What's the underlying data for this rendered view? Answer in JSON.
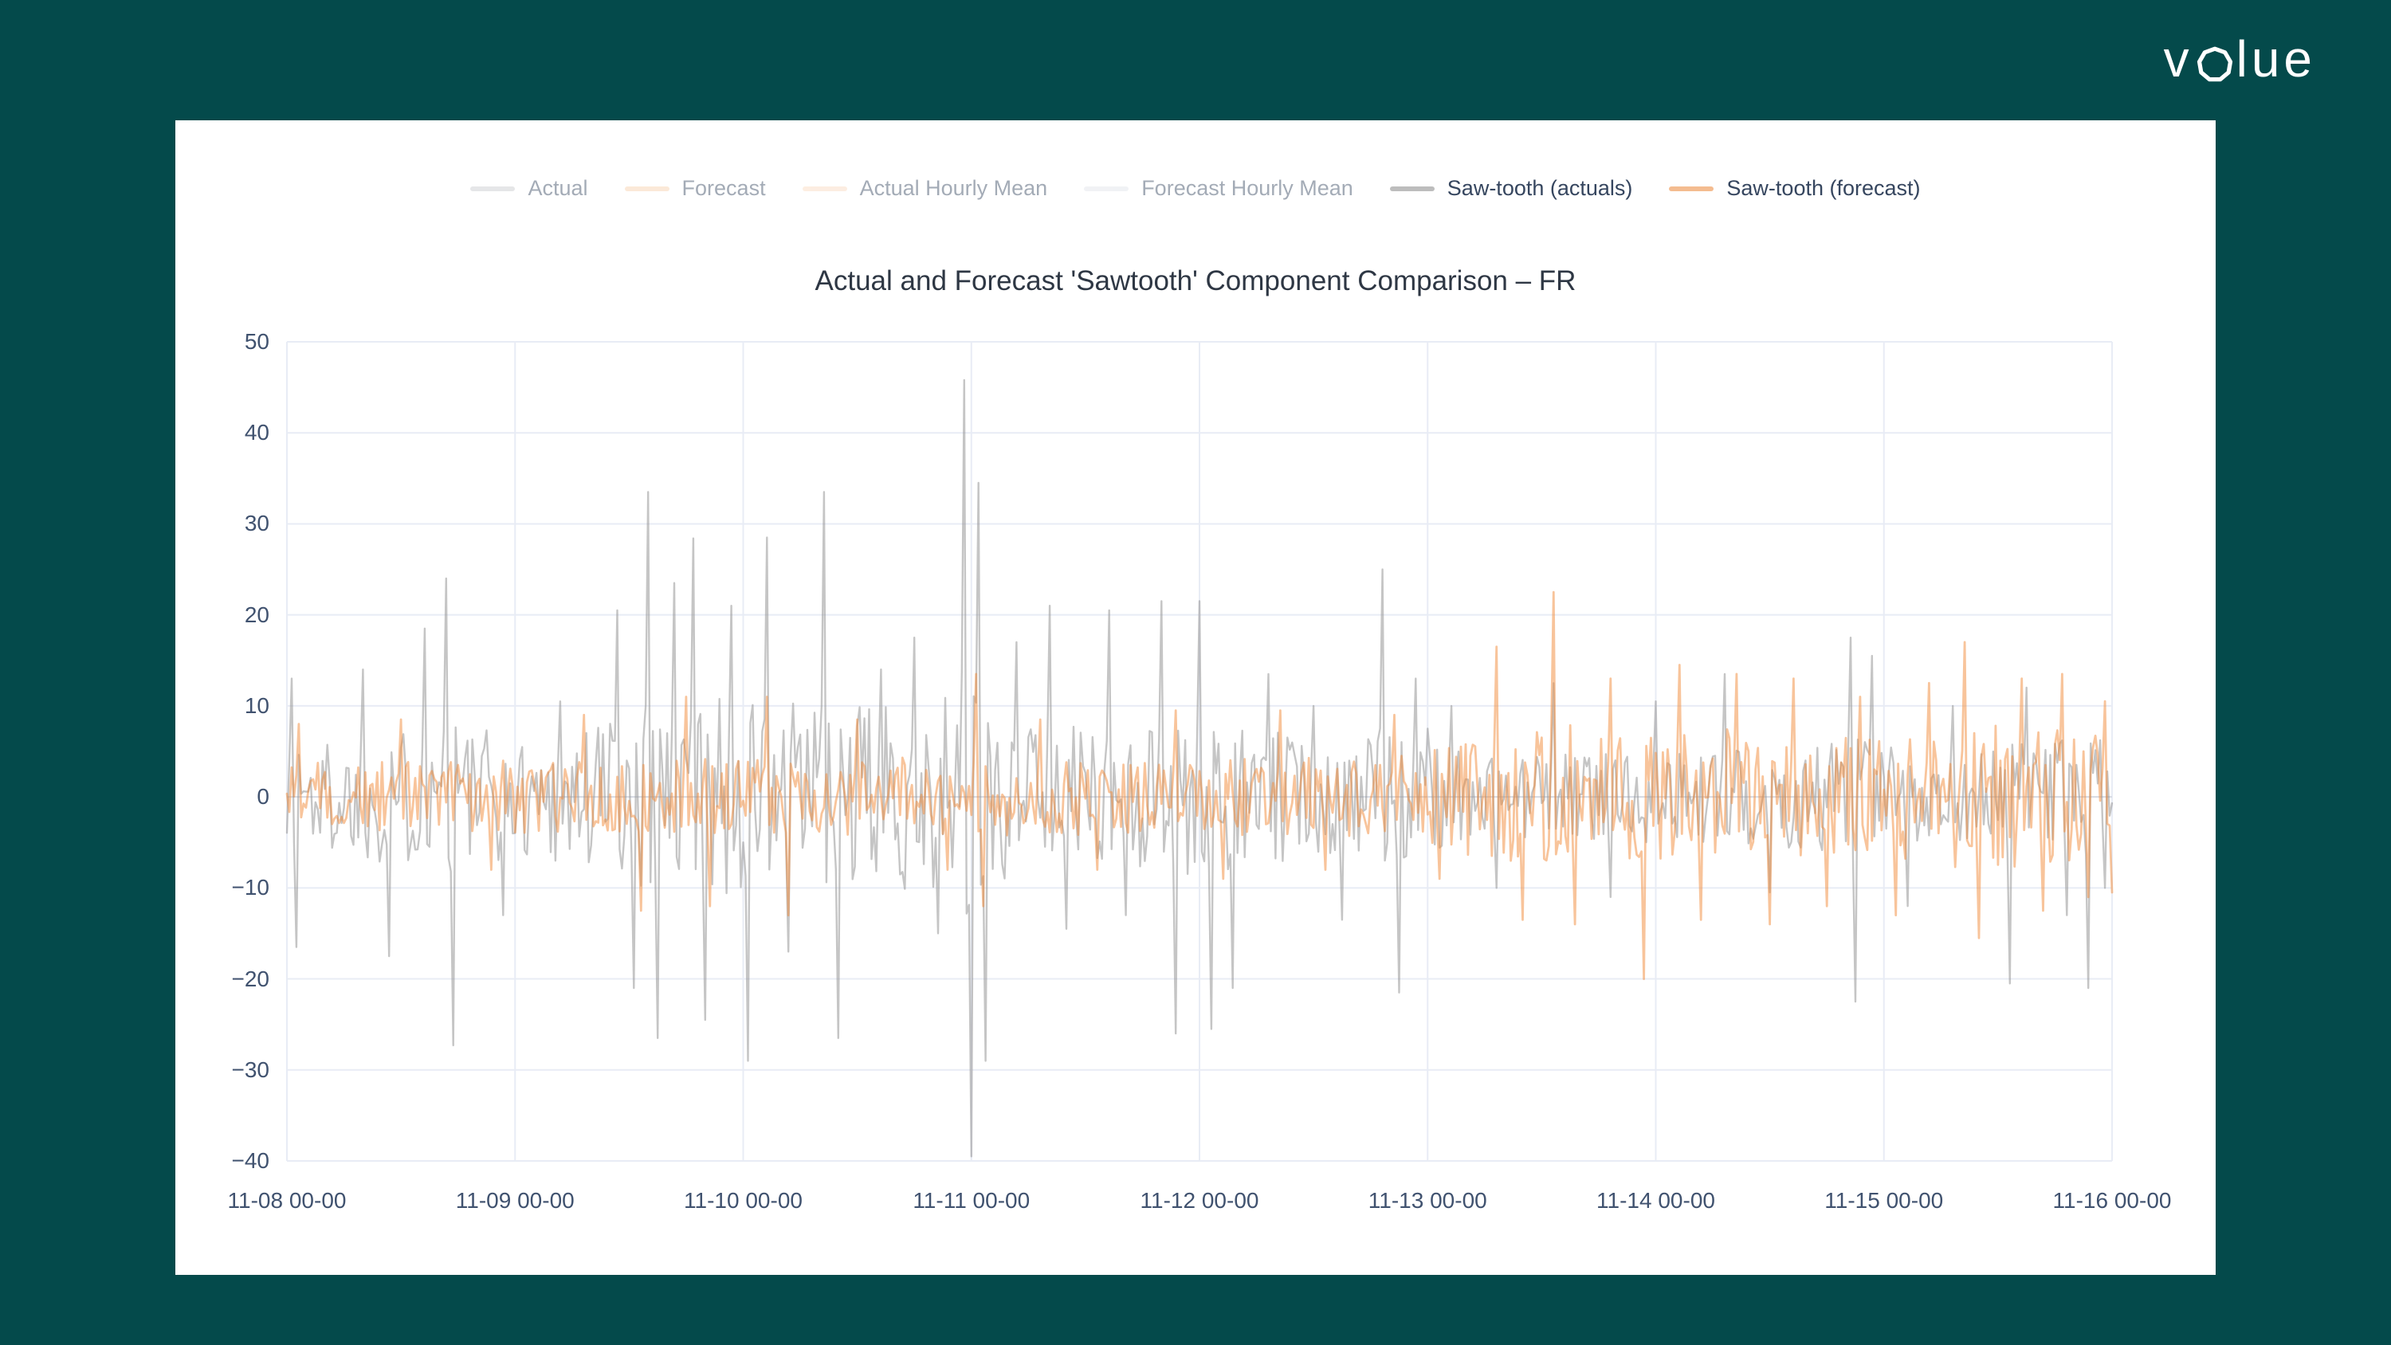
{
  "logo": {
    "first": "v",
    "rest": "lue"
  },
  "chart_data": {
    "type": "line",
    "title": "Actual and Forecast 'Sawtooth' Component Comparison – FR",
    "xlabel": "",
    "ylabel": "",
    "ylim": [
      -40,
      50
    ],
    "xlim_days": [
      0,
      8
    ],
    "grid": true,
    "legend_position": "top-center",
    "x_tick_labels": [
      "11-08 00-00",
      "11-09 00-00",
      "11-10 00-00",
      "11-11 00-00",
      "11-12 00-00",
      "11-13 00-00",
      "11-14 00-00",
      "11-15 00-00",
      "11-16 00-00"
    ],
    "y_tick_values": [
      50,
      40,
      30,
      20,
      10,
      0,
      -10,
      -20,
      -30,
      -40
    ],
    "y_tick_labels": [
      "50",
      "40",
      "30",
      "20",
      "10",
      "0",
      "−10",
      "−20",
      "−30",
      "−40"
    ],
    "colors": {
      "background": "#044a4b",
      "card": "#ffffff",
      "gridline": "#e8ecf5",
      "zeroline": "#d6dae3",
      "tick_text": "#40526f",
      "title_text": "#2e3744",
      "legend_text": "#36465f",
      "logo_text": "#ffffff"
    },
    "legend": [
      {
        "label": "Actual",
        "color": "#c6c8cc",
        "dim": true
      },
      {
        "label": "Forecast",
        "color": "#f7cfab",
        "dim": true
      },
      {
        "label": "Actual Hourly Mean",
        "color": "#fad9bd",
        "dim": true
      },
      {
        "label": "Forecast Hourly Mean",
        "color": "#dfe3e9",
        "dim": true
      },
      {
        "label": "Saw-tooth (actuals)",
        "color": "#bdbdbd",
        "dim": false
      },
      {
        "label": "Saw-tooth (forecast)",
        "color": "#f4bc90",
        "dim": false
      }
    ],
    "hidden_series": [
      "Actual",
      "Forecast",
      "Actual Hourly Mean",
      "Forecast Hourly Mean"
    ],
    "points_per_day": 96,
    "series": [
      {
        "name": "Saw-tooth (actuals)",
        "color": "rgba(150,150,150,0.55)",
        "width": 2.4,
        "seed": 1337,
        "envelope": [
          [
            0,
            5
          ],
          [
            0.5,
            6
          ],
          [
            0.8,
            7
          ],
          [
            1.0,
            5
          ],
          [
            1.4,
            8
          ],
          [
            2.0,
            9
          ],
          [
            2.5,
            8
          ],
          [
            3.0,
            9
          ],
          [
            3.5,
            6
          ],
          [
            4.0,
            7
          ],
          [
            4.6,
            5
          ],
          [
            5.0,
            6
          ],
          [
            5.2,
            4
          ],
          [
            6.0,
            4
          ],
          [
            6.6,
            4.5
          ],
          [
            6.9,
            6
          ],
          [
            7.2,
            3.5
          ],
          [
            7.7,
            5
          ],
          [
            8.0,
            5
          ]
        ],
        "spikes": [
          [
            0.02,
            13
          ],
          [
            0.04,
            -16.5
          ],
          [
            0.33,
            14
          ],
          [
            0.45,
            -17.5
          ],
          [
            0.6,
            18.5
          ],
          [
            0.7,
            24
          ],
          [
            0.73,
            -27.3
          ],
          [
            0.95,
            -13
          ],
          [
            1.2,
            10.5
          ],
          [
            1.45,
            20.5
          ],
          [
            1.52,
            -21
          ],
          [
            1.58,
            33.5
          ],
          [
            1.63,
            -26.5
          ],
          [
            1.7,
            23.5
          ],
          [
            1.78,
            28.4
          ],
          [
            1.83,
            -24.5
          ],
          [
            1.95,
            21
          ],
          [
            2.02,
            -29
          ],
          [
            2.1,
            28.5
          ],
          [
            2.2,
            -17
          ],
          [
            2.35,
            33.5
          ],
          [
            2.42,
            -26.5
          ],
          [
            2.6,
            14
          ],
          [
            2.75,
            17.5
          ],
          [
            2.85,
            -15
          ],
          [
            2.97,
            45.8
          ],
          [
            3.0,
            -39.5
          ],
          [
            3.03,
            34.5
          ],
          [
            3.06,
            -29
          ],
          [
            3.2,
            17
          ],
          [
            3.34,
            21
          ],
          [
            3.42,
            -14.5
          ],
          [
            3.6,
            20.5
          ],
          [
            3.68,
            -13
          ],
          [
            3.83,
            21.5
          ],
          [
            3.9,
            -26
          ],
          [
            4.0,
            21.5
          ],
          [
            4.05,
            -25.5
          ],
          [
            4.15,
            -21
          ],
          [
            4.3,
            13.5
          ],
          [
            4.5,
            10
          ],
          [
            4.62,
            -13.5
          ],
          [
            4.8,
            25
          ],
          [
            4.87,
            -21.5
          ],
          [
            4.95,
            13
          ],
          [
            5.1,
            10
          ],
          [
            5.3,
            -10
          ],
          [
            5.55,
            12.5
          ],
          [
            5.8,
            -11
          ],
          [
            6.0,
            10.5
          ],
          [
            6.3,
            13.5
          ],
          [
            6.5,
            -10.5
          ],
          [
            6.85,
            17.5
          ],
          [
            6.88,
            -22.5
          ],
          [
            6.95,
            15.5
          ],
          [
            7.1,
            -12
          ],
          [
            7.3,
            10
          ],
          [
            7.55,
            -20.5
          ],
          [
            7.62,
            12
          ],
          [
            7.8,
            -13
          ],
          [
            7.9,
            -21
          ],
          [
            7.97,
            -10
          ]
        ]
      },
      {
        "name": "Saw-tooth (forecast)",
        "color": "rgba(241,138,55,0.5)",
        "width": 2.8,
        "seed": 4242,
        "envelope": [
          [
            0,
            3
          ],
          [
            1.0,
            3.2
          ],
          [
            2.0,
            3.5
          ],
          [
            3.0,
            3.5
          ],
          [
            4.0,
            3.2
          ],
          [
            5.0,
            4
          ],
          [
            5.3,
            6
          ],
          [
            5.7,
            6.5
          ],
          [
            6.0,
            6
          ],
          [
            6.5,
            6
          ],
          [
            7.0,
            5.5
          ],
          [
            7.4,
            6.5
          ],
          [
            8.0,
            6
          ]
        ],
        "spikes": [
          [
            0.05,
            8
          ],
          [
            0.5,
            8.5
          ],
          [
            0.9,
            -8
          ],
          [
            1.3,
            9
          ],
          [
            1.55,
            -12.5
          ],
          [
            1.75,
            11
          ],
          [
            1.85,
            -12
          ],
          [
            2.1,
            11
          ],
          [
            2.2,
            -13
          ],
          [
            2.5,
            8.5
          ],
          [
            2.9,
            -8
          ],
          [
            3.02,
            13.5
          ],
          [
            3.05,
            -12
          ],
          [
            3.3,
            8.5
          ],
          [
            3.55,
            -8
          ],
          [
            3.9,
            9.5
          ],
          [
            4.1,
            -9
          ],
          [
            4.35,
            9.5
          ],
          [
            4.55,
            -8
          ],
          [
            4.85,
            9
          ],
          [
            5.05,
            -9
          ],
          [
            5.3,
            16.5
          ],
          [
            5.42,
            -13.5
          ],
          [
            5.55,
            22.5
          ],
          [
            5.65,
            -14
          ],
          [
            5.8,
            13
          ],
          [
            5.95,
            -20
          ],
          [
            6.1,
            14.5
          ],
          [
            6.2,
            -13.5
          ],
          [
            6.35,
            13.5
          ],
          [
            6.5,
            -14
          ],
          [
            6.6,
            13
          ],
          [
            6.75,
            -12
          ],
          [
            6.9,
            11
          ],
          [
            7.05,
            -13
          ],
          [
            7.2,
            12.5
          ],
          [
            7.35,
            17
          ],
          [
            7.42,
            -15.5
          ],
          [
            7.6,
            13
          ],
          [
            7.7,
            -12.5
          ],
          [
            7.78,
            13.5
          ],
          [
            7.9,
            -11
          ],
          [
            7.97,
            10.5
          ],
          [
            8.0,
            -10.5
          ]
        ]
      }
    ]
  }
}
